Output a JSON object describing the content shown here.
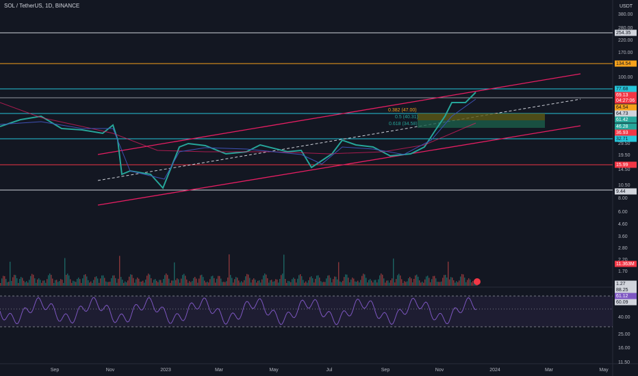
{
  "header": {
    "title": "SOL / TetherUS, 1D, BINANCE",
    "currency": "USDT"
  },
  "price_axis": {
    "labels": [
      "380.00",
      "280.00",
      "220.00",
      "170.00",
      "100.00",
      "29.50",
      "19.50",
      "14.50",
      "10.50",
      "8.00",
      "6.00",
      "4.60",
      "3.60",
      "2.80",
      "2.20",
      "1.70"
    ]
  },
  "rsi_axis": {
    "labels": [
      "40.00",
      "25.00",
      "16.00",
      "11.50"
    ]
  },
  "price_tags": [
    "254.35",
    "134.54",
    "77.68",
    "69.13",
    "04:27:06",
    "64.54",
    "64.73",
    "61.42",
    "46.28",
    "36.93",
    "32.71",
    "15.99",
    "9.44",
    "11.363M",
    "1.27",
    "88.25",
    "61.12",
    "60.09"
  ],
  "fib_labels": [
    "0.382 (47.00)",
    "0.5 (40.31)",
    "0.618 (34.58)"
  ],
  "time_axis": {
    "labels": [
      "Sep",
      "Nov",
      "2023",
      "Mar",
      "May",
      "Jul",
      "Sep",
      "Nov",
      "2024",
      "Mar",
      "May"
    ]
  }
}
